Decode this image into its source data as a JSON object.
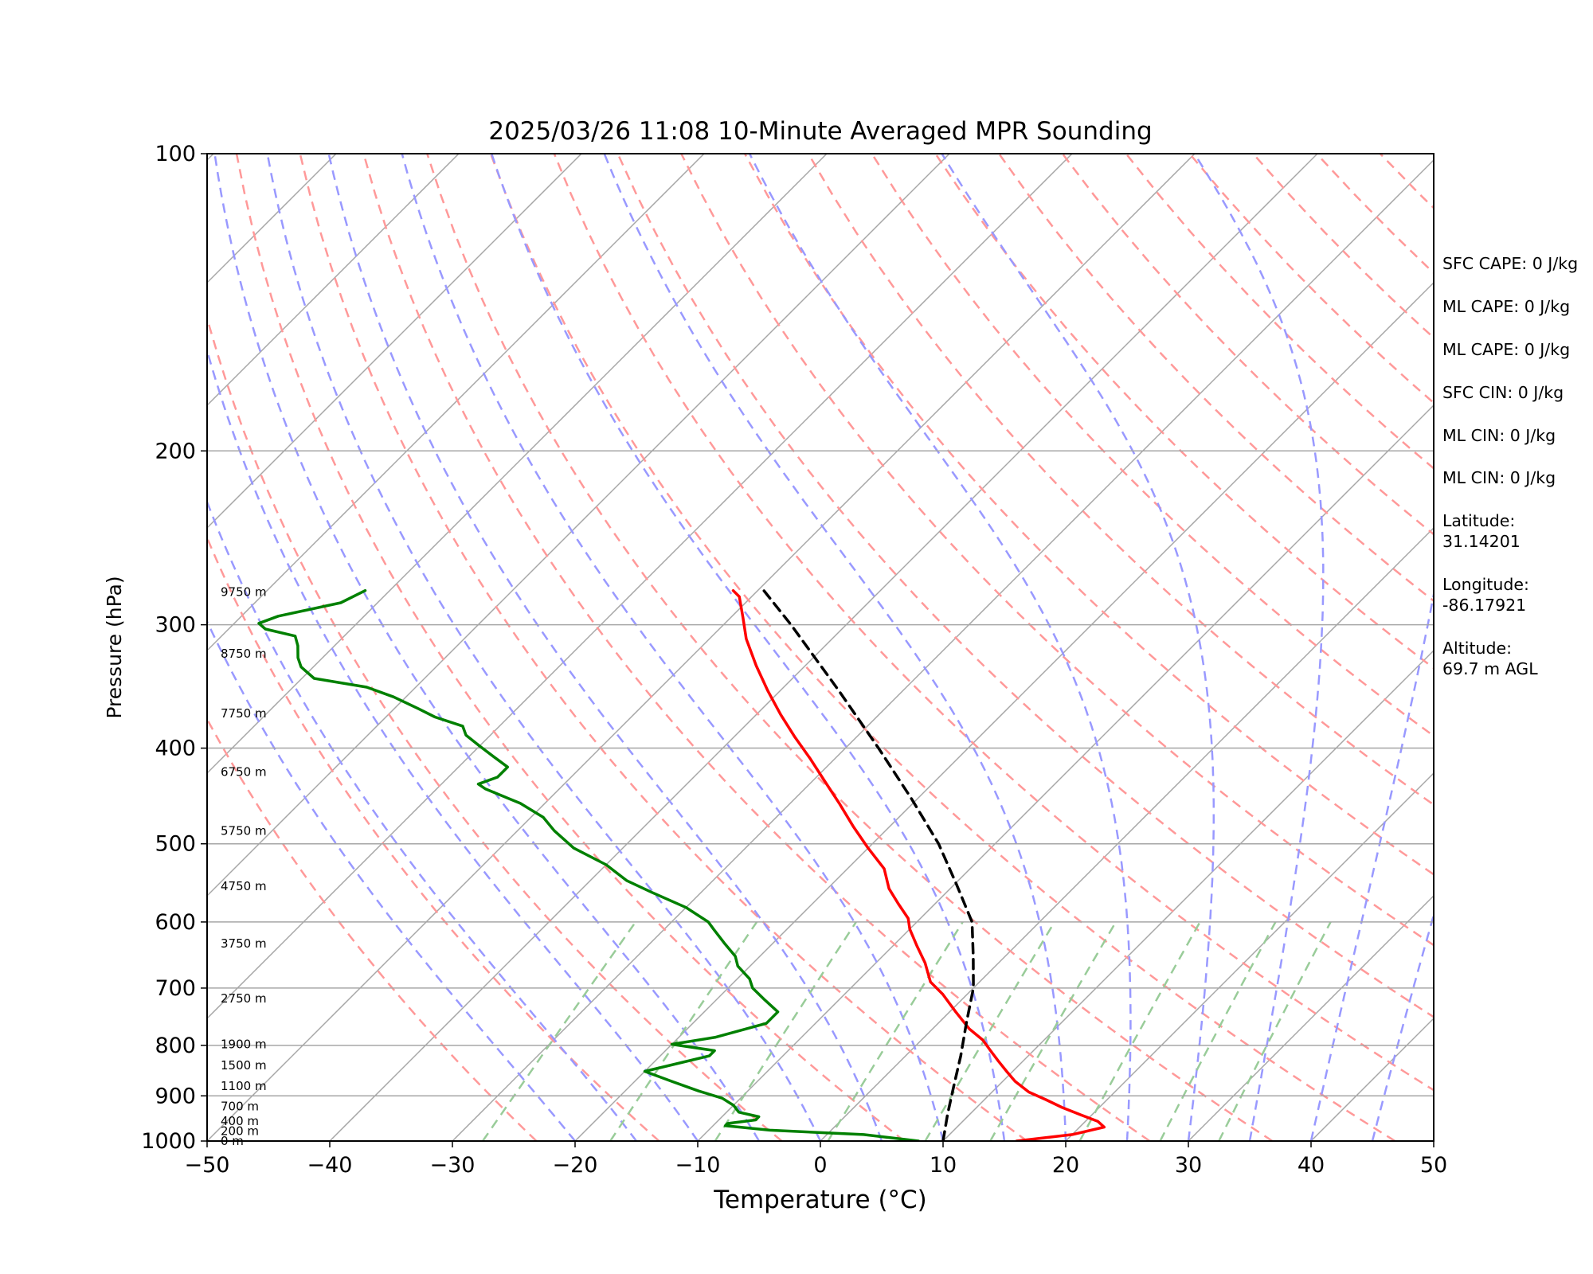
{
  "chart_data": {
    "type": "line",
    "subtype": "skew-T log-P diagram",
    "title": "2025/03/26 11:08 10-Minute Averaged MPR Sounding",
    "xlabel": "Temperature (°C)",
    "ylabel": "Pressure (hPa)",
    "xlim": [
      -50,
      50
    ],
    "ylim": [
      1000,
      100
    ],
    "y_scale": "log",
    "x_ticks": [
      "−50",
      "−40",
      "−30",
      "−20",
      "−10",
      "0",
      "10",
      "20",
      "30",
      "40",
      "50"
    ],
    "y_ticks": [
      "100",
      "200",
      "300",
      "400",
      "500",
      "600",
      "700",
      "800",
      "900",
      "1000"
    ],
    "height_labels": [
      {
        "label": "0 m",
        "p": 1000
      },
      {
        "label": "200 m",
        "p": 977
      },
      {
        "label": "400 m",
        "p": 955
      },
      {
        "label": "700 m",
        "p": 922
      },
      {
        "label": "1100 m",
        "p": 880
      },
      {
        "label": "1500 m",
        "p": 838
      },
      {
        "label": "1900 m",
        "p": 798
      },
      {
        "label": "2750 m",
        "p": 717
      },
      {
        "label": "3750 m",
        "p": 631
      },
      {
        "label": "4750 m",
        "p": 552
      },
      {
        "label": "5750 m",
        "p": 485
      },
      {
        "label": "6750 m",
        "p": 423
      },
      {
        "label": "7750 m",
        "p": 369
      },
      {
        "label": "8750 m",
        "p": 321
      },
      {
        "label": "9750 m",
        "p": 278
      }
    ],
    "series": [
      {
        "kind": "temperature",
        "color": "#ff0000",
        "points": [
          [
            16,
            1000
          ],
          [
            20,
            985
          ],
          [
            22,
            968
          ],
          [
            21,
            955
          ],
          [
            19,
            940
          ],
          [
            17,
            925
          ],
          [
            15,
            908
          ],
          [
            13,
            892
          ],
          [
            11,
            870
          ],
          [
            9.5,
            850
          ],
          [
            8,
            830
          ],
          [
            6.5,
            810
          ],
          [
            5,
            790
          ],
          [
            3,
            770
          ],
          [
            0.5,
            740
          ],
          [
            -2,
            710
          ],
          [
            -4,
            690
          ],
          [
            -6,
            660
          ],
          [
            -8,
            635
          ],
          [
            -10,
            610
          ],
          [
            -11,
            595
          ],
          [
            -13,
            575
          ],
          [
            -15,
            555
          ],
          [
            -17,
            530
          ],
          [
            -20,
            505
          ],
          [
            -23,
            480
          ],
          [
            -26,
            455
          ],
          [
            -29,
            432
          ],
          [
            -32,
            410
          ],
          [
            -35,
            390
          ],
          [
            -38,
            370
          ],
          [
            -41,
            350
          ],
          [
            -44,
            330
          ],
          [
            -47,
            310
          ],
          [
            -49,
            295
          ],
          [
            -51,
            281
          ],
          [
            -52,
            277
          ]
        ]
      },
      {
        "kind": "dewpoint",
        "color": "#008000",
        "points": [
          [
            8,
            1000
          ],
          [
            3,
            985
          ],
          [
            -5,
            975
          ],
          [
            -9,
            965
          ],
          [
            -9,
            960
          ],
          [
            -7,
            952
          ],
          [
            -7,
            945
          ],
          [
            -9,
            935
          ],
          [
            -10,
            920
          ],
          [
            -11.5,
            905
          ],
          [
            -14,
            890
          ],
          [
            -17,
            870
          ],
          [
            -20,
            850
          ],
          [
            -16,
            820
          ],
          [
            -16,
            810
          ],
          [
            -20,
            798
          ],
          [
            -17,
            785
          ],
          [
            -14,
            760
          ],
          [
            -14,
            740
          ],
          [
            -16,
            720
          ],
          [
            -18,
            700
          ],
          [
            -19,
            685
          ],
          [
            -21,
            665
          ],
          [
            -22,
            650
          ],
          [
            -24,
            630
          ],
          [
            -26,
            610
          ],
          [
            -27,
            600
          ],
          [
            -30,
            580
          ],
          [
            -34,
            560
          ],
          [
            -37,
            545
          ],
          [
            -40,
            525
          ],
          [
            -44,
            505
          ],
          [
            -47,
            485
          ],
          [
            -49,
            470
          ],
          [
            -52,
            455
          ],
          [
            -56,
            440
          ],
          [
            -57,
            435
          ],
          [
            -56,
            428
          ],
          [
            -56,
            418
          ],
          [
            -58,
            408
          ],
          [
            -60,
            398
          ],
          [
            -62,
            388
          ],
          [
            -63,
            380
          ],
          [
            -66,
            372
          ],
          [
            -68,
            365
          ],
          [
            -71,
            355
          ],
          [
            -74,
            347
          ],
          [
            -79,
            340
          ],
          [
            -81,
            331
          ],
          [
            -82,
            324
          ],
          [
            -83,
            315
          ],
          [
            -84,
            308
          ],
          [
            -87,
            303
          ],
          [
            -88,
            299
          ],
          [
            -87,
            294
          ],
          [
            -83,
            285
          ],
          [
            -82,
            277
          ]
        ]
      },
      {
        "kind": "parcel",
        "color": "#000000",
        "points": [
          [
            10,
            1000
          ],
          [
            8.2,
            940
          ],
          [
            6.4,
            880
          ],
          [
            4.5,
            820
          ],
          [
            2.3,
            760
          ],
          [
            0,
            700
          ],
          [
            -2.6,
            650
          ],
          [
            -5.5,
            600
          ],
          [
            -9.8,
            550
          ],
          [
            -14.6,
            500
          ],
          [
            -20.5,
            450
          ],
          [
            -27.3,
            400
          ],
          [
            -35.2,
            350
          ],
          [
            -44.5,
            300
          ],
          [
            -49.5,
            277
          ]
        ]
      }
    ],
    "info_text": [
      "SFC CAPE: 0 J/kg",
      "ML CAPE: 0 J/kg",
      "ML CAPE: 0 J/kg",
      "SFC CIN: 0 J/kg",
      "ML CIN: 0 J/kg",
      "ML CIN: 0 J/kg",
      "Latitude:",
      "31.14201",
      "Longitude:",
      "-86.17921",
      "Altitude:",
      "69.7 m AGL"
    ],
    "colors": {
      "isotherm": "#a6a6a6",
      "dry_adiabat": "#ff9999",
      "moist_adiabat": "#9999ff",
      "mixing_ratio": "#99cc99"
    }
  }
}
